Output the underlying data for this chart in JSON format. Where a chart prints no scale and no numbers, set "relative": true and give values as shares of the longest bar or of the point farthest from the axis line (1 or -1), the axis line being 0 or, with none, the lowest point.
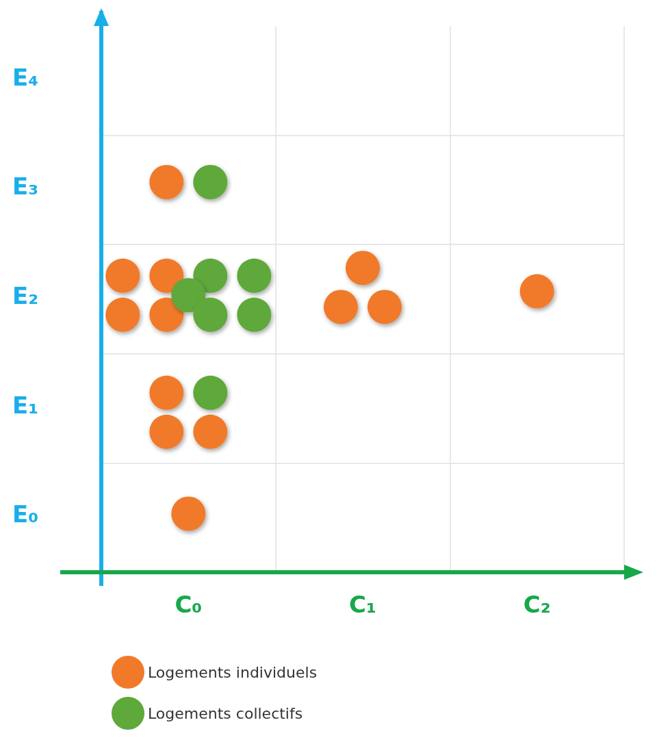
{
  "chart_data": {
    "type": "scatter",
    "relative": true,
    "categories": [
      "C₀",
      "C₁",
      "C₂"
    ],
    "annotations": [
      "E₄",
      "E₃",
      "E₂",
      "E₁",
      "E₀"
    ],
    "grid": true,
    "legend": "bottom left",
    "marker": "circle",
    "series": [
      {
        "name": "Logements individuels",
        "color": "#f07a2a",
        "x": [
          "C₀",
          "C₀",
          "C₀",
          "C₀",
          "C₀",
          "C₀",
          "C₀",
          "C₀",
          "C₀",
          "C₁",
          "C₁",
          "C₁",
          "C₂"
        ],
        "values": [
          1,
          0.76,
          0.76,
          0.66,
          0.66,
          0.46,
          0.36,
          0.36,
          0.15,
          0.78,
          0.68,
          0.68,
          0.72
        ]
      },
      {
        "name": "Logements collectifs",
        "color": "#5fa83a",
        "x": [
          "C₀",
          "C₀",
          "C₀",
          "C₀",
          "C₀",
          "C₀",
          "C₀"
        ],
        "values": [
          1,
          0.76,
          0.76,
          0.71,
          0.66,
          0.66,
          0.46
        ]
      }
    ]
  }
}
